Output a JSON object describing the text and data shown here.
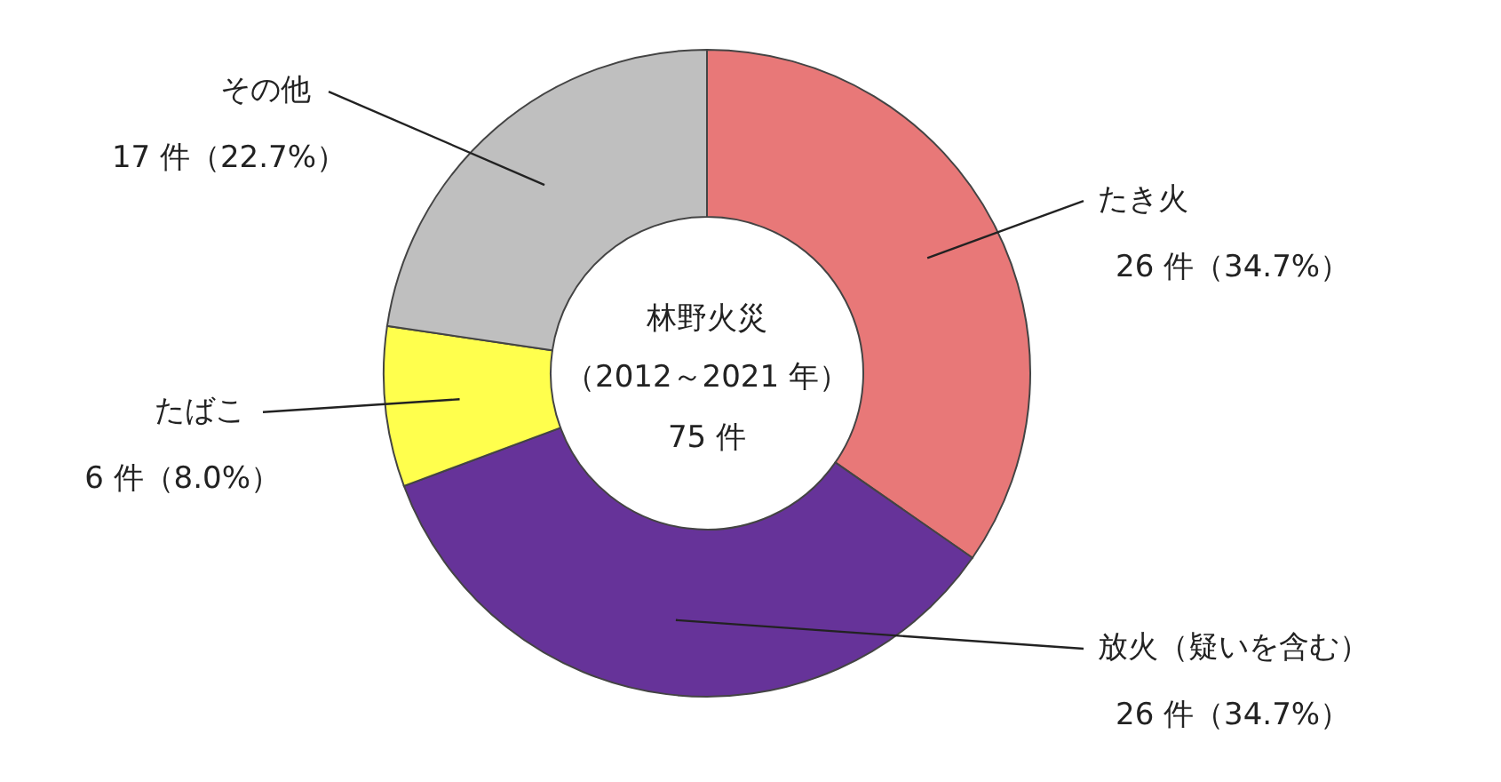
{
  "chart_data": {
    "type": "donut",
    "title": "林野火災",
    "subtitle": "（2012～2021 年）",
    "annotations": [
      "75 件"
    ],
    "categories": [
      "たき火",
      "放火（疑いを含む）",
      "たばこ",
      "その他"
    ],
    "values": [
      26,
      26,
      6,
      17
    ],
    "colors": [
      "#e87878",
      "#663399",
      "#ffff4d",
      "#bfbfbf"
    ],
    "value_labels": [
      "26 件（34.7%）",
      "26 件（34.7%）",
      "6 件（8.0%）",
      "17 件（22.7%）"
    ],
    "legend": false
  }
}
